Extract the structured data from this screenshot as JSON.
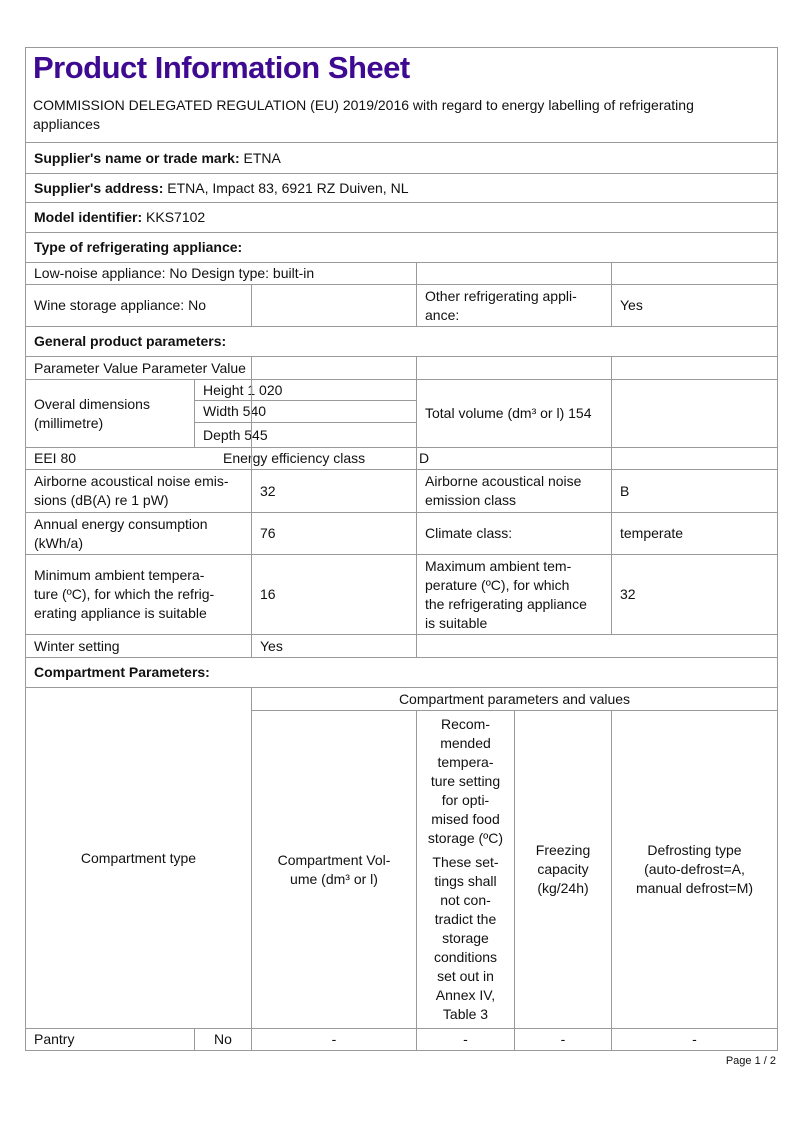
{
  "title": "Product Information Sheet",
  "title_color": "#3d0a91",
  "regulation": "COMMISSION DELEGATED REGULATION (EU) 2019/2016 with regard to energy labelling of refrigerating appliances",
  "supplier_name": {
    "label": "Supplier's name or trade mark:",
    "value": " ETNA"
  },
  "supplier_address": {
    "label": "Supplier's address:",
    "value": " ETNA, Impact 83, 6921 RZ Duiven, NL"
  },
  "model_identifier": {
    "label": "Model identifier:",
    "value": " KKS7102"
  },
  "type_heading": "Type of refrigerating appliance:",
  "low_noise_design": "Low-noise appliance: No Design type: built-in",
  "wine_storage": "Wine storage appliance: No",
  "other_label": "Other refrigerating appli-\nance:",
  "other_value": "Yes",
  "general_heading": "General product parameters:",
  "param_header": "Parameter Value Parameter Value",
  "dimensions_label": "Overal dimensions\n(millimetre)",
  "height": "Height 1 020",
  "width": "Width 540",
  "depth": "Depth 545",
  "total_volume": "Total volume (dm³ or l) 154",
  "eei": "EEI 80",
  "energy_class_label": "Energy efficiency class",
  "energy_class_value": "D",
  "noise_label": "Airborne acoustical noise emis-\nsions (dB(A) re 1 pW)",
  "noise_value": "32",
  "noise_class_label": "Airborne acoustical noise\nemission class",
  "noise_class_value": "B",
  "annual_label": "Annual energy consumption\n(kWh/a)",
  "annual_value": "76",
  "climate_label": "Climate class:",
  "climate_value": "temperate",
  "min_temp_label": "Minimum ambient tempera-\nture (ºC), for which the refrig-\nerating appliance is suitable",
  "min_temp_value": "16",
  "max_temp_label": "Maximum ambient tem-\nperature (ºC), for which\nthe refrigerating appliance\nis suitable",
  "max_temp_value": "32",
  "winter_label": "Winter setting",
  "winter_value": "Yes",
  "compartment_heading": "Compartment Parameters:",
  "compartment_table": {
    "type_header": "Compartment type",
    "group_header": "Compartment parameters and values",
    "volume_header": "Compartment Vol-\nume (dm³ or l)",
    "temp_header": "Recom-\nmended\ntempera-\nture setting\nfor opti-\nmised food\nstorage (ºC)",
    "temp_note": "These set-\ntings shall\nnot con-\ntradict the\nstorage\nconditions\nset out in\nAnnex IV,\nTable 3",
    "freezing_header": "Freezing\ncapacity\n(kg/24h)",
    "defrost_header": "Defrosting type\n(auto-defrost=A,\nmanual defrost=M)",
    "rows": [
      {
        "type": "Pantry",
        "present": "No",
        "volume": "-",
        "temp": "-",
        "freezing": "-",
        "defrost": "-"
      }
    ]
  },
  "footer": "Page 1 / 2"
}
